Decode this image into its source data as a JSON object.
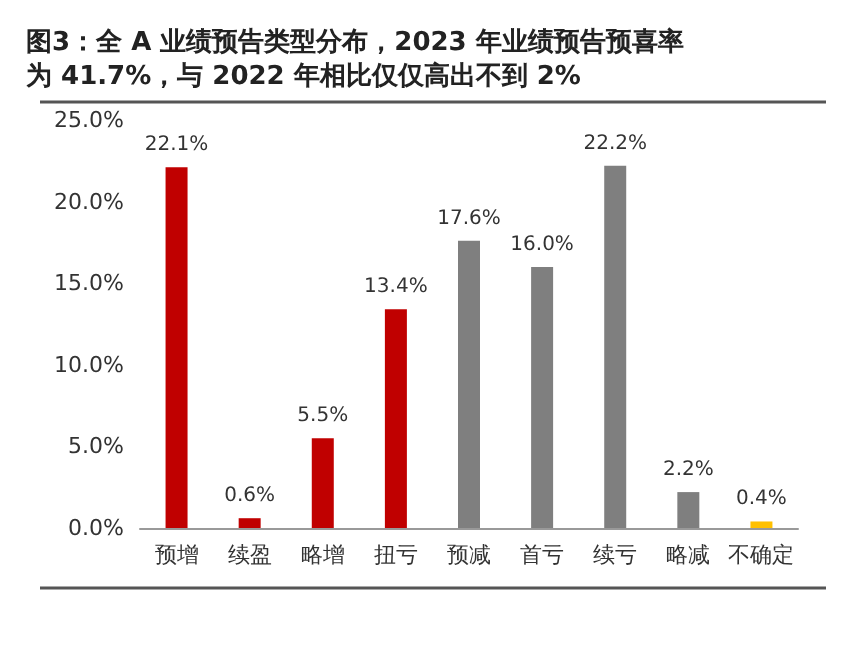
{
  "chart_data": {
    "type": "bar",
    "title": "图3：全 A 业绩预告类型分布，2023 年业绩预告预喜率为 41.7%，与 2022 年相比仅仅高出不到 2%",
    "categories": [
      "预增",
      "续盈",
      "略增",
      "扭亏",
      "预减",
      "首亏",
      "续亏",
      "略减",
      "不确定"
    ],
    "values": [
      22.1,
      0.6,
      5.5,
      13.4,
      17.6,
      16.0,
      22.2,
      2.2,
      0.4
    ],
    "colors": [
      "#c00000",
      "#c00000",
      "#c00000",
      "#c00000",
      "#7f7f7f",
      "#7f7f7f",
      "#7f7f7f",
      "#7f7f7f",
      "#ffc000"
    ],
    "value_labels": [
      "22.1%",
      "0.6%",
      "5.5%",
      "13.4%",
      "17.6%",
      "16.0%",
      "22.2%",
      "2.2%",
      "0.4%"
    ],
    "ylim": [
      0,
      25
    ],
    "yticks": [
      {
        "value": 0,
        "label": "0.0%"
      },
      {
        "value": 5,
        "label": "5.0%"
      },
      {
        "value": 10,
        "label": "10.0%"
      },
      {
        "value": 15,
        "label": "15.0%"
      },
      {
        "value": 20,
        "label": "20.0%"
      },
      {
        "value": 25,
        "label": "25.0%"
      }
    ],
    "grid": false
  }
}
